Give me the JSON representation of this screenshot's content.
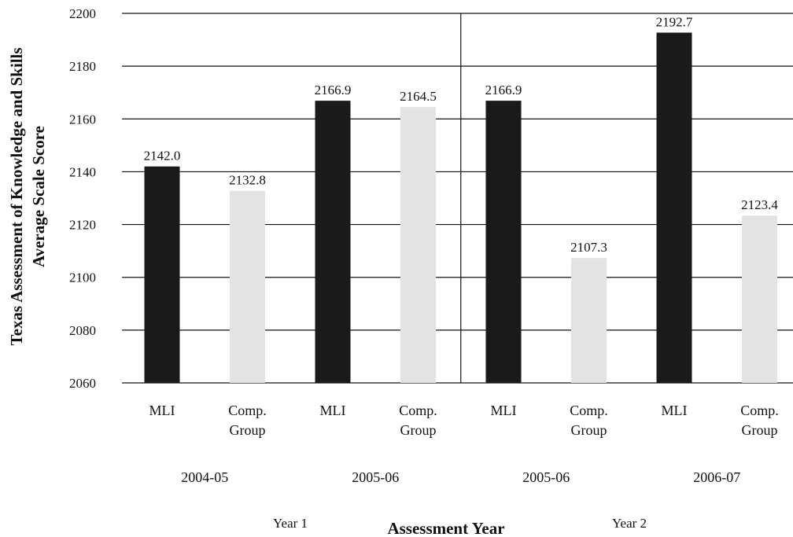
{
  "chart_data": {
    "type": "bar",
    "ylabel": [
      "Texas Assessment of Knowledge and Skills",
      "Average Scale Score"
    ],
    "xlabel": "Assessment Year",
    "ylim": [
      2060,
      2200
    ],
    "yticks": [
      2060,
      2080,
      2100,
      2120,
      2140,
      2160,
      2180,
      2200
    ],
    "grid": true,
    "colors": {
      "mli": "#1a1a1a",
      "comp": "#e3e3e3"
    },
    "bars": [
      {
        "label": [
          "MLI"
        ],
        "group": "mli",
        "value": 2142.0,
        "value_label": "2142.0"
      },
      {
        "label": [
          "Comp.",
          "Group"
        ],
        "group": "comp",
        "value": 2132.8,
        "value_label": "2132.8"
      },
      {
        "label": [
          "MLI"
        ],
        "group": "mli",
        "value": 2166.9,
        "value_label": "2166.9"
      },
      {
        "label": [
          "Comp.",
          "Group"
        ],
        "group": "comp",
        "value": 2164.5,
        "value_label": "2164.5"
      },
      {
        "label": [
          "MLI"
        ],
        "group": "mli",
        "value": 2166.9,
        "value_label": "2166.9"
      },
      {
        "label": [
          "Comp.",
          "Group"
        ],
        "group": "comp",
        "value": 2107.3,
        "value_label": "2107.3"
      },
      {
        "label": [
          "MLI"
        ],
        "group": "mli",
        "value": 2192.7,
        "value_label": "2192.7"
      },
      {
        "label": [
          "Comp.",
          "Group"
        ],
        "group": "comp",
        "value": 2123.4,
        "value_label": "2123.4"
      }
    ],
    "assessment_years": [
      "2004-05",
      "2005-06",
      "2005-06",
      "2006-07"
    ],
    "periods": [
      "Year 1",
      "Year 2"
    ]
  }
}
